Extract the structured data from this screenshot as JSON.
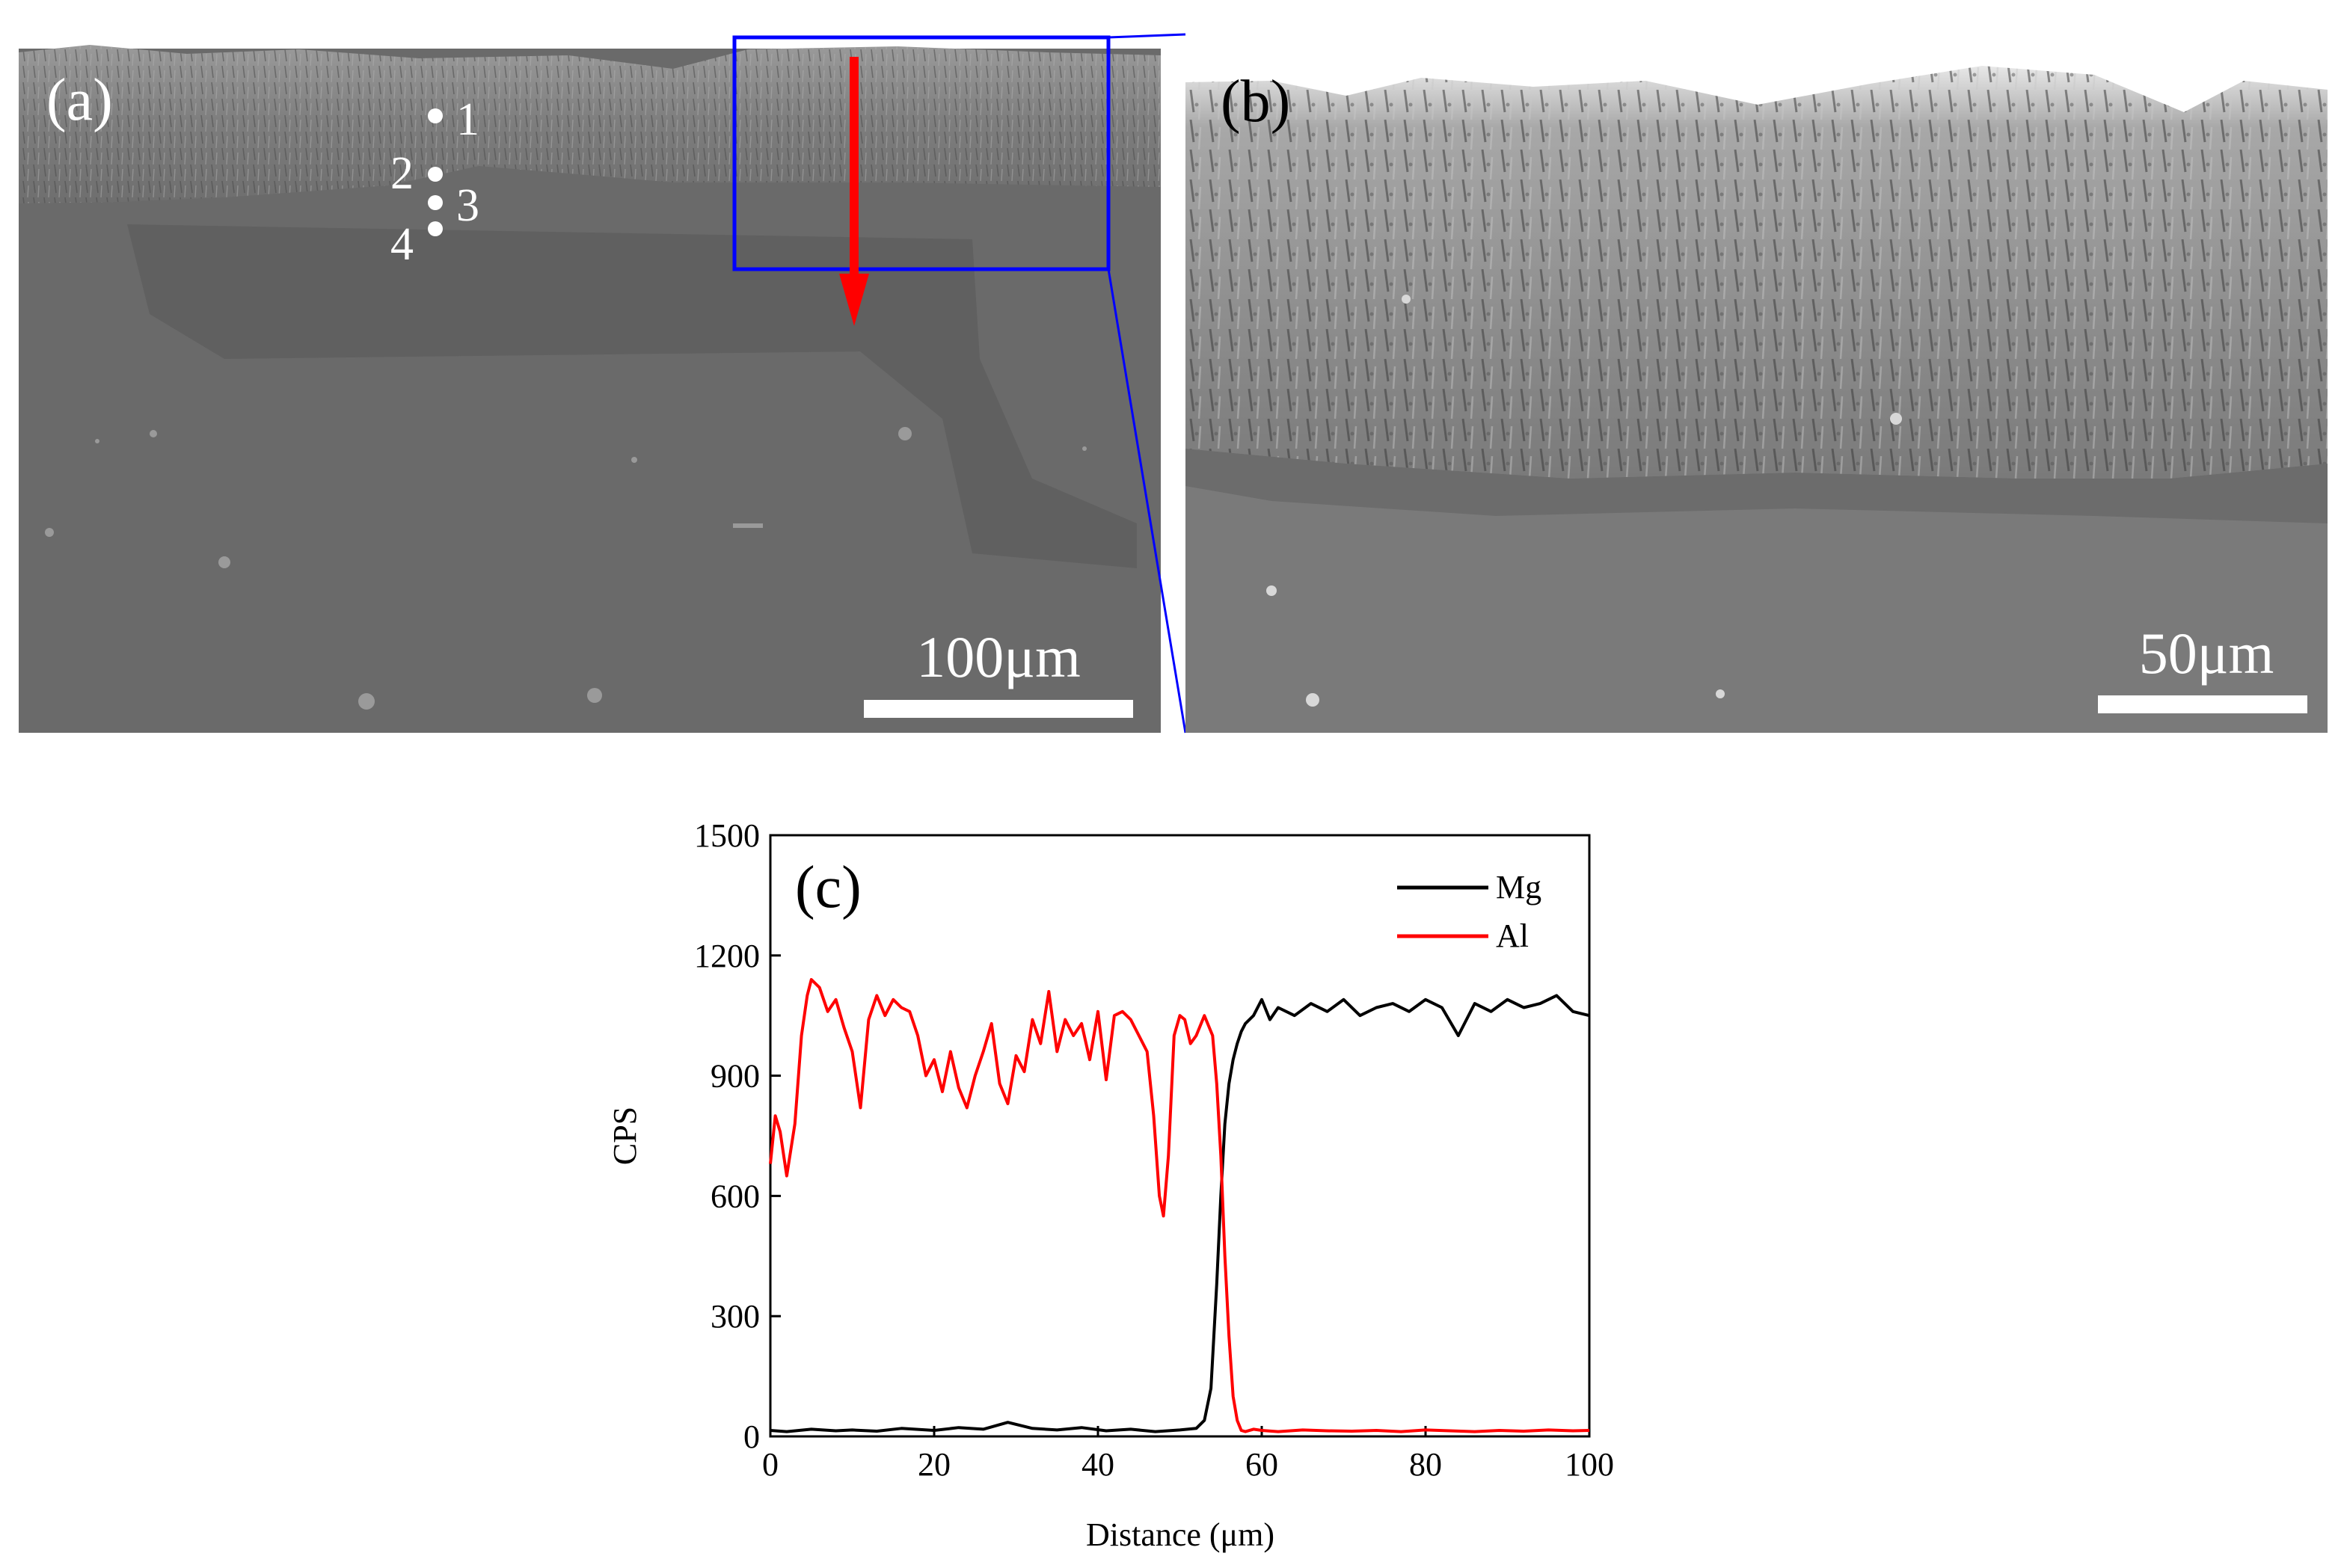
{
  "panels": {
    "a": {
      "label": "(a)",
      "points": [
        "1",
        "2",
        "3",
        "4"
      ],
      "scale_bar": "100μm"
    },
    "b": {
      "label": "(b)",
      "scale_bar": "50μm"
    }
  },
  "colors": {
    "mg": "#000000",
    "al": "#ff0000",
    "box": "#0000ff",
    "arrow": "#ff0000"
  },
  "chart_data": {
    "type": "line",
    "panel_label": "(c)",
    "title": "",
    "xlabel": "Distance (μm)",
    "ylabel": "CPS",
    "xlim": [
      0,
      100
    ],
    "ylim": [
      0,
      1500
    ],
    "xticks": [
      0,
      20,
      40,
      60,
      80,
      100
    ],
    "yticks": [
      0,
      300,
      600,
      900,
      1200,
      1500
    ],
    "legend_position": "top-right",
    "series": [
      {
        "name": "Mg",
        "color": "#000000",
        "x": [
          0,
          2,
          5,
          8,
          10,
          13,
          16,
          20,
          23,
          26,
          29,
          32,
          35,
          38,
          41,
          44,
          47,
          50,
          52,
          53,
          53.8,
          54.5,
          55,
          55.5,
          56,
          56.5,
          57,
          57.5,
          58,
          59,
          60,
          61,
          62,
          64,
          66,
          68,
          70,
          72,
          74,
          76,
          78,
          80,
          82,
          84,
          86,
          88,
          90,
          92,
          94,
          96,
          98,
          100
        ],
        "y": [
          15,
          12,
          18,
          14,
          16,
          13,
          20,
          15,
          22,
          18,
          35,
          20,
          16,
          22,
          14,
          18,
          12,
          16,
          20,
          40,
          120,
          380,
          600,
          780,
          880,
          940,
          980,
          1010,
          1030,
          1050,
          1090,
          1040,
          1070,
          1050,
          1080,
          1060,
          1090,
          1050,
          1070,
          1080,
          1060,
          1090,
          1070,
          1000,
          1080,
          1060,
          1090,
          1070,
          1080,
          1100,
          1060,
          1050
        ]
      },
      {
        "name": "Al",
        "color": "#ff0000",
        "x": [
          0,
          0.6,
          1.2,
          2,
          3,
          3.8,
          4.5,
          5,
          6,
          7,
          8,
          9,
          10,
          11,
          12,
          13,
          14,
          15,
          16,
          17,
          18,
          19,
          20,
          21,
          22,
          23,
          24,
          25,
          26,
          27,
          28,
          29,
          30,
          31,
          32,
          33,
          34,
          35,
          36,
          37,
          38,
          39,
          40,
          41,
          42,
          43,
          44,
          45,
          46,
          46.8,
          47.5,
          48,
          48.6,
          49.3,
          50,
          50.6,
          51.3,
          52,
          53,
          54,
          54.5,
          55,
          55.5,
          56,
          56.5,
          57,
          57.5,
          58,
          59,
          60,
          62,
          65,
          68,
          71,
          74,
          77,
          80,
          83,
          86,
          89,
          92,
          95,
          98,
          100
        ],
        "y": [
          680,
          800,
          760,
          650,
          780,
          1000,
          1100,
          1140,
          1120,
          1060,
          1090,
          1020,
          960,
          820,
          1040,
          1100,
          1050,
          1090,
          1070,
          1060,
          1000,
          900,
          940,
          860,
          960,
          870,
          820,
          900,
          960,
          1030,
          880,
          830,
          950,
          910,
          1040,
          980,
          1110,
          960,
          1040,
          1000,
          1030,
          940,
          1060,
          890,
          1050,
          1060,
          1040,
          1000,
          960,
          800,
          600,
          550,
          700,
          1000,
          1050,
          1040,
          980,
          1000,
          1050,
          1000,
          880,
          700,
          450,
          250,
          100,
          40,
          15,
          12,
          18,
          15,
          12,
          16,
          14,
          13,
          15,
          12,
          16,
          14,
          12,
          15,
          13,
          16,
          14,
          15
        ]
      }
    ]
  }
}
